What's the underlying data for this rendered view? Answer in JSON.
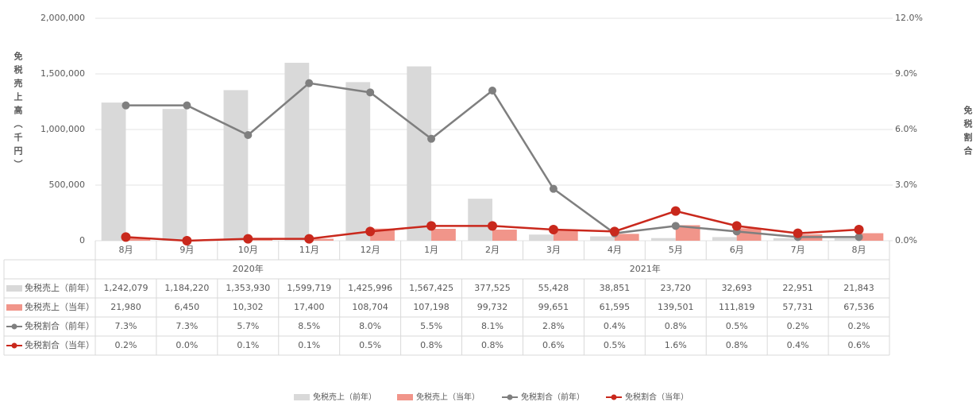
{
  "chart_data": {
    "type": "bar-line",
    "y_label": "免税売上高（千円）",
    "y2_label": "免税割合",
    "categories": [
      "8月",
      "9月",
      "10月",
      "11月",
      "12月",
      "1月",
      "2月",
      "3月",
      "4月",
      "5月",
      "6月",
      "7月",
      "8月"
    ],
    "category_groups": [
      {
        "name": "2020年",
        "span": 5
      },
      {
        "name": "2021年",
        "span": 8
      }
    ],
    "ylim": [
      0,
      2000000
    ],
    "yticks": [
      0,
      {
        "value": 500000,
        "label": "500,000"
      },
      {
        "value": 1000000,
        "label": "1,000,000"
      },
      {
        "value": 1500000,
        "label": "1,500,000"
      },
      {
        "value": 2000000,
        "label": "2,000,000"
      }
    ],
    "y2lim": [
      0,
      12
    ],
    "y2ticks": [
      {
        "value": 0,
        "label": "0.0%"
      },
      {
        "value": 3,
        "label": "3.0%"
      },
      {
        "value": 6,
        "label": "6.0%"
      },
      {
        "value": 9,
        "label": "9.0%"
      },
      {
        "value": 12,
        "label": "12.0%"
      }
    ],
    "grid": true,
    "series": [
      {
        "name": "免税売上（前年）",
        "kind": "bar",
        "color": "#d9d9d9",
        "values": [
          1242079,
          1184220,
          1353930,
          1599719,
          1425996,
          1567425,
          377525,
          55428,
          38851,
          23720,
          32693,
          22951,
          21843
        ],
        "value_labels": [
          "1,242,079",
          "1,184,220",
          "1,353,930",
          "1,599,719",
          "1,425,996",
          "1,567,425",
          "377,525",
          "55,428",
          "38,851",
          "23,720",
          "32,693",
          "22,951",
          "21,843"
        ]
      },
      {
        "name": "免税売上（当年）",
        "kind": "bar",
        "color": "#f1958a",
        "values": [
          21980,
          6450,
          10302,
          17400,
          108704,
          107198,
          99732,
          99651,
          61595,
          139501,
          111819,
          57731,
          67536
        ],
        "value_labels": [
          "21,980",
          "6,450",
          "10,302",
          "17,400",
          "108,704",
          "107,198",
          "99,732",
          "99,651",
          "61,595",
          "139,501",
          "111,819",
          "57,731",
          "67,536"
        ]
      },
      {
        "name": "免税割合（前年）",
        "kind": "line",
        "axis": "y2",
        "color": "#7f7f7f",
        "values": [
          7.3,
          7.3,
          5.7,
          8.5,
          8.0,
          5.5,
          8.1,
          2.8,
          0.4,
          0.8,
          0.5,
          0.2,
          0.2
        ],
        "value_labels": [
          "7.3%",
          "7.3%",
          "5.7%",
          "8.5%",
          "8.0%",
          "5.5%",
          "8.1%",
          "2.8%",
          "0.4%",
          "0.8%",
          "0.5%",
          "0.2%",
          "0.2%"
        ]
      },
      {
        "name": "免税割合（当年）",
        "kind": "line",
        "axis": "y2",
        "color": "#c9281c",
        "values": [
          0.2,
          0.0,
          0.1,
          0.1,
          0.5,
          0.8,
          0.8,
          0.6,
          0.5,
          1.6,
          0.8,
          0.4,
          0.6
        ],
        "value_labels": [
          "0.2%",
          "0.0%",
          "0.1%",
          "0.1%",
          "0.5%",
          "0.8%",
          "0.8%",
          "0.6%",
          "0.5%",
          "1.6%",
          "0.8%",
          "0.4%",
          "0.6%"
        ]
      }
    ]
  }
}
